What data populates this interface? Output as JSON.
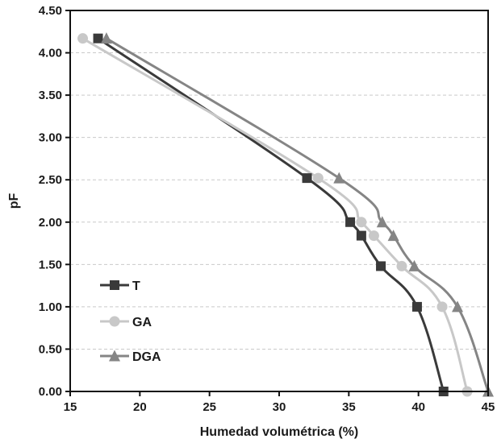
{
  "chart_data": {
    "type": "line",
    "xlabel": "Humedad volumétrica (%)",
    "ylabel": "pF",
    "xlim": [
      15,
      45
    ],
    "ylim": [
      0,
      4.5
    ],
    "x_ticks": [
      "15",
      "20",
      "25",
      "30",
      "35",
      "40",
      "45"
    ],
    "y_ticks": [
      "0.00",
      "0.50",
      "1.00",
      "1.50",
      "2.00",
      "2.50",
      "3.00",
      "3.50",
      "4.00",
      "4.50"
    ],
    "grid": "horizontal dashed",
    "legend_position": "left",
    "series": [
      {
        "name": "T",
        "color": "#3a3a3a",
        "marker": "square",
        "points": [
          [
            17.0,
            4.17
          ],
          [
            32.0,
            2.52
          ],
          [
            35.1,
            2.0
          ],
          [
            35.9,
            1.84
          ],
          [
            37.3,
            1.48
          ],
          [
            39.9,
            1.0
          ],
          [
            41.8,
            0.0
          ]
        ]
      },
      {
        "name": "GA",
        "color": "#c8c8c8",
        "marker": "circle",
        "points": [
          [
            15.9,
            4.17
          ],
          [
            32.8,
            2.52
          ],
          [
            35.9,
            2.0
          ],
          [
            36.8,
            1.84
          ],
          [
            38.8,
            1.48
          ],
          [
            41.7,
            1.0
          ],
          [
            43.5,
            0.0
          ]
        ]
      },
      {
        "name": "DGA",
        "color": "#858585",
        "marker": "triangle",
        "points": [
          [
            17.6,
            4.17
          ],
          [
            34.3,
            2.52
          ],
          [
            37.4,
            2.0
          ],
          [
            38.2,
            1.84
          ],
          [
            39.7,
            1.48
          ],
          [
            42.8,
            1.0
          ],
          [
            45.0,
            0.0
          ]
        ]
      }
    ]
  }
}
